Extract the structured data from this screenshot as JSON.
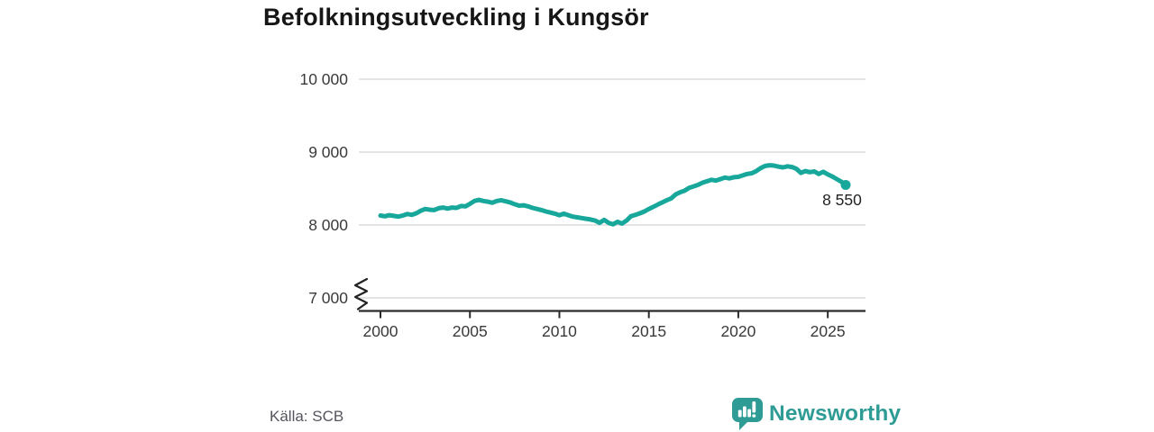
{
  "title": "Befolkningsutveckling i Kungsör",
  "source": {
    "text": "Källa: SCB"
  },
  "brand": {
    "name": "Newsworthy"
  },
  "colors": {
    "line": "#18a79b",
    "brand_teal": "#2e9c95",
    "grid": "#e4e4e4",
    "axis": "#2b2b2b",
    "tick_text": "#3a3a3a",
    "title_text": "#161616"
  },
  "chart_data": {
    "type": "line",
    "title": "Befolkningsutveckling i Kungsör",
    "xlabel": "",
    "ylabel": "",
    "grid": true,
    "legend": "none",
    "axis_break_bottom": true,
    "xlim": [
      1998.8,
      2027.1
    ],
    "ylim": [
      7000,
      10000
    ],
    "x_ticks": [
      2000,
      2005,
      2010,
      2015,
      2020,
      2025
    ],
    "xtick_labels": [
      "2000",
      "2005",
      "2010",
      "2015",
      "2020",
      "2025"
    ],
    "y_ticks": [
      10000,
      9000,
      8000,
      7000
    ],
    "ytick_labels": [
      "10 000",
      "9 000",
      "8 000",
      "7 000"
    ],
    "end_label": "8 550",
    "series": [
      {
        "name": "Befolkning i Kungsör",
        "x_start": 2000,
        "x_step": 0.25,
        "values": [
          8130,
          8120,
          8135,
          8125,
          8115,
          8130,
          8150,
          8140,
          8160,
          8195,
          8220,
          8210,
          8205,
          8230,
          8240,
          8225,
          8240,
          8235,
          8260,
          8255,
          8290,
          8330,
          8345,
          8330,
          8320,
          8305,
          8330,
          8340,
          8325,
          8310,
          8285,
          8265,
          8270,
          8255,
          8235,
          8220,
          8205,
          8185,
          8170,
          8155,
          8135,
          8155,
          8135,
          8115,
          8105,
          8095,
          8085,
          8075,
          8060,
          8030,
          8070,
          8030,
          8010,
          8045,
          8020,
          8060,
          8120,
          8140,
          8160,
          8185,
          8220,
          8250,
          8280,
          8310,
          8340,
          8365,
          8420,
          8450,
          8470,
          8510,
          8530,
          8550,
          8580,
          8600,
          8620,
          8610,
          8630,
          8650,
          8640,
          8655,
          8660,
          8680,
          8700,
          8710,
          8740,
          8780,
          8810,
          8820,
          8815,
          8800,
          8790,
          8805,
          8795,
          8770,
          8715,
          8740,
          8725,
          8735,
          8700,
          8730,
          8695,
          8665,
          8630,
          8595,
          8550
        ]
      }
    ]
  }
}
